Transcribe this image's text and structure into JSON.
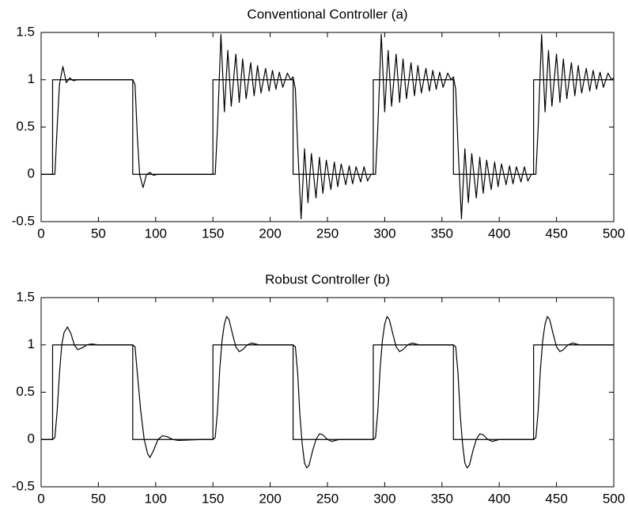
{
  "chart_data": [
    {
      "type": "line",
      "title": "Conventional Controller (a)",
      "xlim": [
        0,
        500
      ],
      "ylim": [
        -0.5,
        1.5
      ],
      "xticks": [
        0,
        50,
        100,
        150,
        200,
        250,
        300,
        350,
        400,
        450,
        500
      ],
      "yticks": [
        -0.5,
        0,
        0.5,
        1,
        1.5
      ],
      "series": [
        {
          "color": "#000000",
          "x": [
            0,
            10,
            10,
            80,
            80,
            150,
            150,
            220,
            220,
            290,
            290,
            360,
            360,
            430,
            430,
            500
          ],
          "values": [
            0,
            0,
            1,
            1,
            0,
            0,
            1,
            1,
            0,
            0,
            1,
            1,
            0,
            0,
            1,
            1
          ]
        },
        {
          "color": "#000000",
          "x": [
            0,
            10,
            12,
            14,
            16,
            19,
            22,
            25,
            28,
            32,
            80,
            82,
            84,
            86,
            89,
            92,
            95,
            98,
            102,
            148,
            150,
            152,
            154,
            157,
            160,
            163,
            166,
            170,
            173,
            176,
            179,
            183,
            186,
            189,
            192,
            196,
            199,
            202,
            205,
            208,
            211,
            215,
            218,
            220,
            222,
            224,
            227,
            230,
            233,
            236,
            240,
            243,
            246,
            249,
            253,
            256,
            259,
            262,
            266,
            269,
            272,
            275,
            279,
            282,
            285,
            288,
            290,
            292,
            294,
            297,
            300,
            303,
            306,
            310,
            313,
            316,
            319,
            323,
            326,
            329,
            332,
            336,
            339,
            342,
            345,
            348,
            351,
            355,
            358,
            360,
            362,
            364,
            367,
            370,
            373,
            376,
            380,
            383,
            386,
            389,
            393,
            396,
            399,
            402,
            406,
            409,
            412,
            415,
            419,
            422,
            425,
            428,
            430,
            432,
            434,
            437,
            440,
            443,
            446,
            450,
            453,
            456,
            459,
            463,
            466,
            469,
            472,
            476,
            479,
            482,
            485,
            488,
            491,
            495,
            498,
            500
          ],
          "values": [
            0,
            0,
            0,
            0.5,
            0.95,
            1.14,
            0.97,
            1.02,
            0.99,
            1.0,
            1.0,
            0.95,
            0.4,
            0.0,
            -0.14,
            0.0,
            0.02,
            -0.01,
            0,
            0,
            0,
            0,
            0.5,
            1.48,
            0.66,
            1.31,
            0.72,
            1.27,
            0.76,
            1.22,
            0.8,
            1.18,
            0.83,
            1.15,
            0.86,
            1.12,
            0.88,
            1.1,
            0.9,
            1.08,
            0.92,
            1.07,
            1.0,
            1.03,
            0.9,
            0.3,
            -0.47,
            0.27,
            -0.3,
            0.22,
            -0.25,
            0.18,
            -0.2,
            0.15,
            -0.16,
            0.13,
            -0.13,
            0.11,
            -0.11,
            0.09,
            -0.1,
            0.08,
            -0.08,
            0.08,
            -0.07,
            0.0,
            0,
            0,
            0.5,
            1.48,
            0.66,
            1.31,
            0.72,
            1.27,
            0.76,
            1.22,
            0.8,
            1.18,
            0.83,
            1.15,
            0.86,
            1.12,
            0.88,
            1.1,
            0.9,
            1.08,
            0.92,
            1.07,
            1.0,
            1.03,
            0.9,
            0.3,
            -0.47,
            0.27,
            -0.3,
            0.22,
            -0.25,
            0.18,
            -0.2,
            0.15,
            -0.16,
            0.13,
            -0.13,
            0.11,
            -0.11,
            0.09,
            -0.1,
            0.08,
            -0.08,
            0.08,
            -0.07,
            0.0,
            0,
            0,
            0.5,
            1.48,
            0.66,
            1.31,
            0.72,
            1.27,
            0.76,
            1.22,
            0.8,
            1.18,
            0.83,
            1.15,
            0.86,
            1.12,
            0.88,
            1.1,
            0.9,
            1.08,
            0.92,
            1.07,
            1.0,
            1.02
          ]
        }
      ]
    },
    {
      "type": "line",
      "title": "Robust Controller (b)",
      "xlim": [
        0,
        500
      ],
      "ylim": [
        -0.5,
        1.5
      ],
      "xticks": [
        0,
        50,
        100,
        150,
        200,
        250,
        300,
        350,
        400,
        450,
        500
      ],
      "yticks": [
        -0.5,
        0,
        0.5,
        1,
        1.5
      ],
      "series": [
        {
          "color": "#000000",
          "x": [
            0,
            10,
            10,
            80,
            80,
            150,
            150,
            220,
            220,
            290,
            290,
            360,
            360,
            430,
            430,
            500
          ],
          "values": [
            0,
            0,
            1,
            1,
            0,
            0,
            1,
            1,
            0,
            0,
            1,
            1,
            0,
            0,
            1,
            1
          ]
        },
        {
          "color": "#000000",
          "x": [
            0,
            10,
            12,
            14,
            16,
            18,
            20,
            23,
            26,
            29,
            32,
            36,
            40,
            44,
            50,
            80,
            82,
            84,
            87,
            90,
            93,
            95,
            98,
            102,
            106,
            110,
            115,
            120,
            140,
            150,
            152,
            154,
            156,
            158,
            160,
            162,
            164,
            167,
            170,
            173,
            176,
            180,
            184,
            190,
            218,
            220,
            222,
            224,
            226,
            228,
            230,
            232,
            234,
            237,
            240,
            243,
            246,
            250,
            254,
            260,
            288,
            290,
            292,
            294,
            296,
            298,
            300,
            302,
            304,
            307,
            310,
            313,
            316,
            320,
            324,
            330,
            358,
            360,
            362,
            364,
            366,
            368,
            370,
            372,
            374,
            377,
            380,
            383,
            386,
            390,
            394,
            400,
            428,
            430,
            432,
            434,
            436,
            438,
            440,
            442,
            444,
            447,
            450,
            453,
            456,
            460,
            464,
            470,
            498,
            500
          ],
          "values": [
            0,
            0,
            0.02,
            0.3,
            0.7,
            1.0,
            1.13,
            1.19,
            1.12,
            1.0,
            0.95,
            0.97,
            1.0,
            1.01,
            1.0,
            1,
            0.98,
            0.7,
            0.3,
            0.0,
            -0.15,
            -0.19,
            -0.12,
            0.0,
            0.04,
            0.03,
            0.0,
            -0.01,
            0,
            0,
            0.02,
            0.3,
            0.75,
            1.05,
            1.22,
            1.3,
            1.27,
            1.12,
            0.98,
            0.93,
            0.95,
            1.0,
            1.02,
            1.0,
            1.0,
            1,
            0.98,
            0.7,
            0.25,
            -0.05,
            -0.25,
            -0.3,
            -0.27,
            -0.12,
            0.0,
            0.06,
            0.05,
            0.0,
            -0.02,
            0,
            0,
            0,
            0.02,
            0.3,
            0.75,
            1.05,
            1.22,
            1.3,
            1.27,
            1.12,
            0.98,
            0.93,
            0.95,
            1.0,
            1.02,
            1.0,
            1.0,
            1,
            0.98,
            0.7,
            0.25,
            -0.05,
            -0.25,
            -0.3,
            -0.27,
            -0.12,
            0.0,
            0.06,
            0.05,
            0.0,
            -0.02,
            0,
            0,
            0,
            0.02,
            0.3,
            0.75,
            1.05,
            1.22,
            1.3,
            1.27,
            1.12,
            0.98,
            0.93,
            0.95,
            1.0,
            1.02,
            1.0,
            1.0,
            1.0
          ]
        }
      ]
    }
  ]
}
